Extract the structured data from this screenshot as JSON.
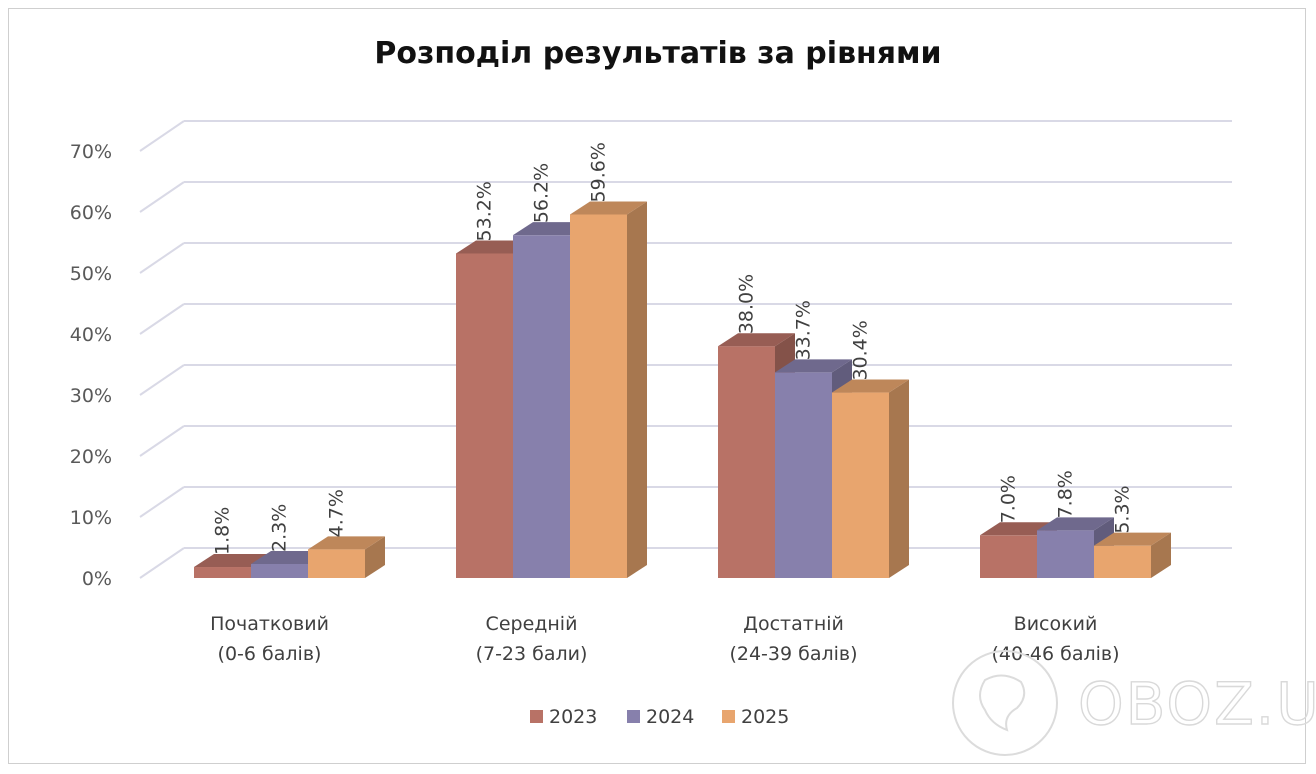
{
  "chart_data": {
    "type": "bar",
    "title": "Розподіл результатів за рівнями",
    "categories": [
      [
        "Початковий",
        "(0-6 балів)"
      ],
      [
        "Середній",
        "(7-23 бали)"
      ],
      [
        "Достатній",
        "(24-39 балів)"
      ],
      [
        "Високий",
        "(40-46 балів)"
      ]
    ],
    "series": [
      {
        "name": "2023",
        "values": [
          1.8,
          53.2,
          38.0,
          7.0
        ],
        "color": "#B87266"
      },
      {
        "name": "2024",
        "values": [
          2.3,
          56.2,
          33.7,
          7.8
        ],
        "color": "#8780AC"
      },
      {
        "name": "2025",
        "values": [
          4.7,
          59.6,
          30.4,
          5.3
        ],
        "color": "#E8A56E"
      }
    ],
    "data_labels": [
      [
        "1.8%",
        "53.2%",
        "38.0%",
        "7.0%"
      ],
      [
        "2.3%",
        "56.2%",
        "33.7%",
        "7.8%"
      ],
      [
        "4.7%",
        "59.6%",
        "30.4%",
        "5.3%"
      ]
    ],
    "y_ticks": [
      "0%",
      "10%",
      "20%",
      "30%",
      "40%",
      "50%",
      "60%",
      "70%"
    ],
    "ylim": [
      0,
      70
    ],
    "grid": true,
    "legend": "bottom",
    "watermark": "OBOZ.UA"
  }
}
